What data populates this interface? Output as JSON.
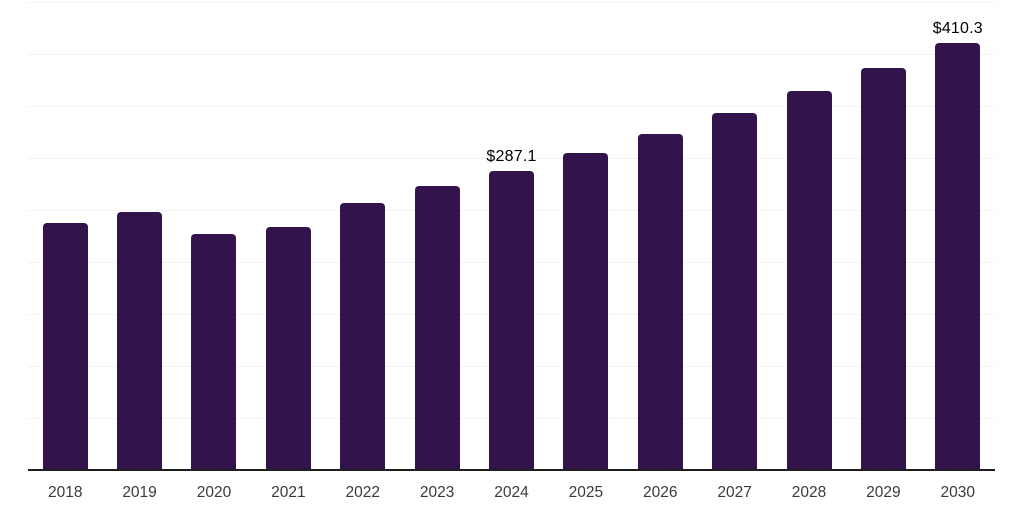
{
  "chart_data": {
    "type": "bar",
    "title": "",
    "xlabel": "",
    "ylabel": "",
    "categories": [
      "2018",
      "2019",
      "2020",
      "2021",
      "2022",
      "2023",
      "2024",
      "2025",
      "2026",
      "2027",
      "2028",
      "2029",
      "2030"
    ],
    "values": [
      237.5,
      248.1,
      227.4,
      233.7,
      256.7,
      272.9,
      287.1,
      304.7,
      323.4,
      343.2,
      364.3,
      386.6,
      410.3
    ],
    "data_labels": [
      "",
      "",
      "",
      "",
      "",
      "",
      "$287.1",
      "",
      "",
      "",
      "",
      "",
      "$410.3"
    ],
    "ylim": [
      0,
      450
    ],
    "grid": true,
    "gridline_step": 50,
    "legend": "none",
    "colors": {
      "bar": "#32134c",
      "gridline": "#f2f2f2",
      "axis_line": "#1f1f1f",
      "tick_label": "#3a3a3a",
      "data_label": "#000000"
    }
  }
}
